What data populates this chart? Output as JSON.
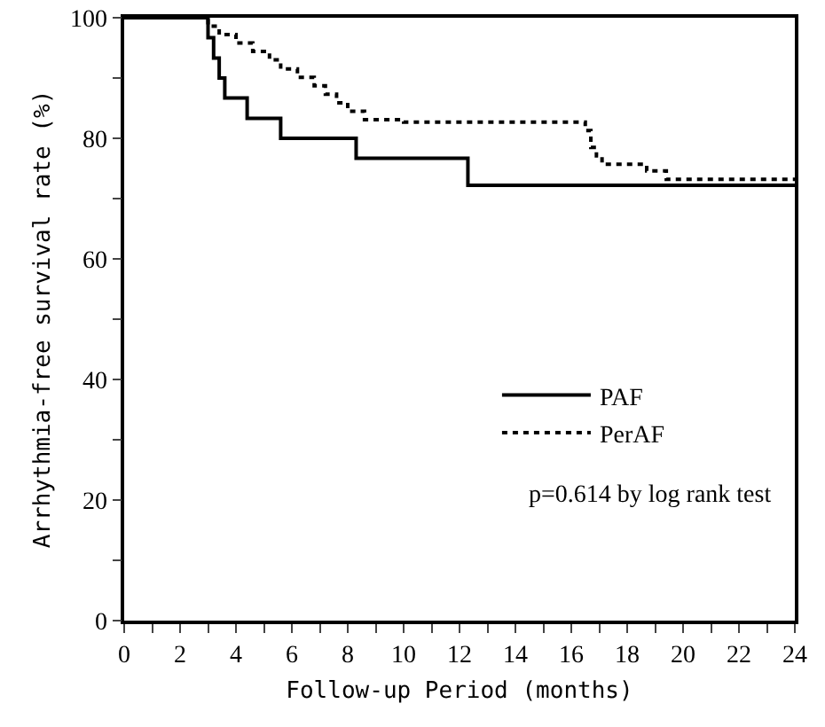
{
  "chart_data": {
    "type": "step",
    "xlabel": "Follow-up Period (months)",
    "ylabel": "Arrhythmia-free survival rate (%)",
    "series": [
      {
        "name": "PAF",
        "color": "#000000",
        "line_style": "solid",
        "x": [
          0,
          3.0,
          3.2,
          3.4,
          3.6,
          4.4,
          5.6,
          8.3,
          12.3,
          24
        ],
        "values": [
          100,
          96.7,
          93.3,
          90,
          86.7,
          83.3,
          80,
          76.7,
          72.2,
          72.2
        ]
      },
      {
        "name": "PerAF",
        "color": "#000000",
        "line_style": "dotted",
        "x": [
          0,
          3.0,
          3.4,
          4.0,
          4.6,
          5.2,
          5.6,
          6.2,
          6.8,
          7.2,
          7.6,
          8.0,
          8.6,
          9.2,
          10.0,
          16.5,
          16.7,
          16.9,
          17.1,
          18.7,
          19.4,
          24
        ],
        "values": [
          100,
          98.6,
          97.2,
          95.8,
          94.4,
          93,
          91.5,
          90.1,
          88.7,
          87.3,
          85.9,
          84.5,
          83.1,
          83.1,
          82.7,
          81.3,
          78.5,
          77.1,
          75.7,
          74.6,
          73.2,
          73.2
        ]
      }
    ],
    "xlim": [
      0,
      24
    ],
    "xticks": [
      0,
      {
        "value": 1,
        "label": null
      },
      2,
      {
        "value": 3,
        "label": null
      },
      4,
      {
        "value": 5,
        "label": null
      },
      6,
      {
        "value": 7,
        "label": null
      },
      8,
      {
        "value": 9,
        "label": null
      },
      10,
      {
        "value": 11,
        "label": null
      },
      12,
      {
        "value": 13,
        "label": null
      },
      14,
      {
        "value": 15,
        "label": null
      },
      16,
      {
        "value": 17,
        "label": null
      },
      18,
      {
        "value": 19,
        "label": null
      },
      20,
      {
        "value": 21,
        "label": null
      },
      22,
      {
        "value": 23,
        "label": null
      },
      24
    ],
    "ylim": [
      0,
      100
    ],
    "yticks": [
      0,
      {
        "value": 10,
        "label": null
      },
      20,
      {
        "value": 30,
        "label": null
      },
      40,
      {
        "value": 50,
        "label": null
      },
      60,
      {
        "value": 70,
        "label": null
      },
      80,
      {
        "value": 90,
        "label": null
      },
      100
    ],
    "grid": false,
    "legend": "bottom right",
    "marker": "none",
    "annotations": [
      "p=0.614 by log rank test"
    ]
  }
}
